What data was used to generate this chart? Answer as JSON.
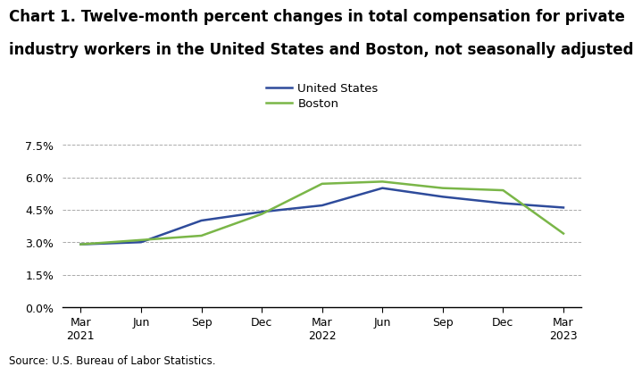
{
  "title_line1": "Chart 1. Twelve-month percent changes in total compensation for private",
  "title_line2": "industry workers in the United States and Boston, not seasonally adjusted",
  "source": "Source: U.S. Bureau of Labor Statistics.",
  "x_tick_labels": [
    "Mar\n2021",
    "Jun",
    "Sep",
    "Dec",
    "Mar\n2022",
    "Jun",
    "Sep",
    "Dec",
    "Mar\n2023"
  ],
  "x_positions": [
    0,
    1,
    2,
    3,
    4,
    5,
    6,
    7,
    8
  ],
  "us_values": [
    2.9,
    3.0,
    4.0,
    4.4,
    4.7,
    5.5,
    5.1,
    4.8,
    4.6
  ],
  "boston_values": [
    2.9,
    3.1,
    3.3,
    4.3,
    5.7,
    5.8,
    5.5,
    5.4,
    3.4
  ],
  "us_color": "#2E4B9B",
  "boston_color": "#7AB648",
  "us_label": "United States",
  "boston_label": "Boston",
  "ylim": [
    0.0,
    7.5
  ],
  "yticks": [
    0.0,
    1.5,
    3.0,
    4.5,
    6.0,
    7.5
  ],
  "ytick_labels": [
    "0.0%",
    "1.5%",
    "3.0%",
    "4.5%",
    "6.0%",
    "7.5%"
  ],
  "grid_color": "#AAAAAA",
  "line_width": 1.8,
  "title_fontsize": 12,
  "legend_fontsize": 9.5,
  "tick_fontsize": 9,
  "source_fontsize": 8.5
}
